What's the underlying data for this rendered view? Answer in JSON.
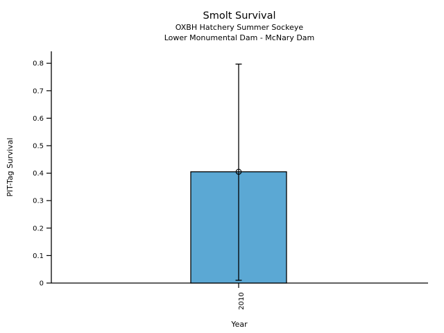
{
  "page": {
    "background": "#ffffff"
  },
  "chart_data": {
    "type": "bar",
    "title": "Smolt Survival",
    "subtitle1": "OXBH Hatchery Summer Sockeye",
    "subtitle2": "Lower Monumental Dam - McNary Dam",
    "xlabel": "Year",
    "ylabel": "PIT-Tag Survival",
    "categories": [
      "2010"
    ],
    "values": [
      0.405
    ],
    "error_bars": [
      {
        "low": 0.01,
        "high": 0.797
      }
    ],
    "ylim": [
      0,
      0.84
    ],
    "yticks": [
      "0",
      "0.1",
      "0.2",
      "0.3",
      "0.4",
      "0.5",
      "0.6",
      "0.7",
      "0.8"
    ],
    "grid": false,
    "marker": "open-circle",
    "colors": {
      "bar_fill": "#5BA8D4",
      "bar_edge": "#000000",
      "axis": "#000000",
      "text": "#000000"
    }
  }
}
